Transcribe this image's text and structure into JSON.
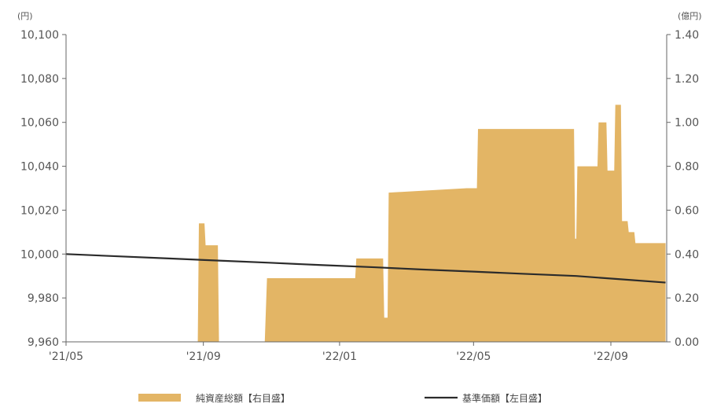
{
  "chart_data": {
    "type": "area",
    "left_axis": {
      "unit": "(円)",
      "ylim": [
        9960,
        10100
      ],
      "ticks": [
        "9,960",
        "9,980",
        "10,000",
        "10,020",
        "10,040",
        "10,060",
        "10,080",
        "10,100"
      ]
    },
    "right_axis": {
      "unit": "(億円)",
      "ylim": [
        0,
        1.4
      ],
      "ticks": [
        "0.00",
        "0.20",
        "0.40",
        "0.60",
        "0.80",
        "1.00",
        "1.20",
        "1.40"
      ]
    },
    "x_ticks": [
      "'21/05",
      "'21/09",
      "'22/01",
      "'22/05",
      "'22/09"
    ],
    "series": [
      {
        "name": "純資産総額【右目盛】",
        "kind": "area",
        "axis": "right",
        "color": "#e3b565",
        "x": [
          "2021-05-01",
          "2021-08-27",
          "2021-08-28",
          "2021-09-02",
          "2021-09-03",
          "2021-09-14",
          "2021-09-15",
          "2021-10-26",
          "2021-10-28",
          "2022-01-06",
          "2022-01-07",
          "2022-01-15",
          "2022-01-16",
          "2022-01-21",
          "2022-01-22",
          "2022-02-09",
          "2022-02-10",
          "2022-02-13",
          "2022-02-14",
          "2022-04-25",
          "2022-04-26",
          "2022-05-04",
          "2022-05-05",
          "2022-07-30",
          "2022-07-31",
          "2022-08-01",
          "2022-08-02",
          "2022-08-10",
          "2022-08-11",
          "2022-08-20",
          "2022-08-21",
          "2022-08-28",
          "2022-08-29",
          "2022-09-04",
          "2022-09-05",
          "2022-09-10",
          "2022-09-11",
          "2022-09-16",
          "2022-09-17",
          "2022-09-22",
          "2022-09-23",
          "2022-09-28",
          "2022-09-29",
          "2022-10-06",
          "2022-10-07",
          "2022-10-14",
          "2022-10-15",
          "2022-10-20"
        ],
        "y": [
          0,
          0,
          0.54,
          0.54,
          0.44,
          0.44,
          0,
          0,
          0.29,
          0.29,
          0.29,
          0.29,
          0.38,
          0.38,
          0.38,
          0.38,
          0.11,
          0.11,
          0.68,
          0.7,
          0.7,
          0.7,
          0.97,
          0.97,
          0.47,
          0.47,
          0.8,
          0.8,
          0.8,
          0.8,
          1.0,
          1.0,
          0.78,
          0.78,
          1.08,
          1.08,
          0.55,
          0.55,
          0.5,
          0.5,
          0.45,
          0.45,
          0.45,
          0.45,
          0.45,
          0.45,
          0.45,
          0.45
        ]
      },
      {
        "name": "基準価額【左目盛】",
        "kind": "line",
        "axis": "left",
        "color": "#2b2b2b",
        "x": [
          "2021-05-01",
          "2021-06-15",
          "2021-08-01",
          "2021-09-15",
          "2021-11-01",
          "2021-12-15",
          "2022-02-01",
          "2022-03-15",
          "2022-05-01",
          "2022-06-15",
          "2022-08-01",
          "2022-09-10",
          "2022-10-20"
        ],
        "y": [
          10000,
          9999,
          9998,
          9997,
          9996,
          9995,
          9994,
          9993,
          9992,
          9991,
          9990,
          9988.5,
          9987
        ]
      }
    ]
  }
}
